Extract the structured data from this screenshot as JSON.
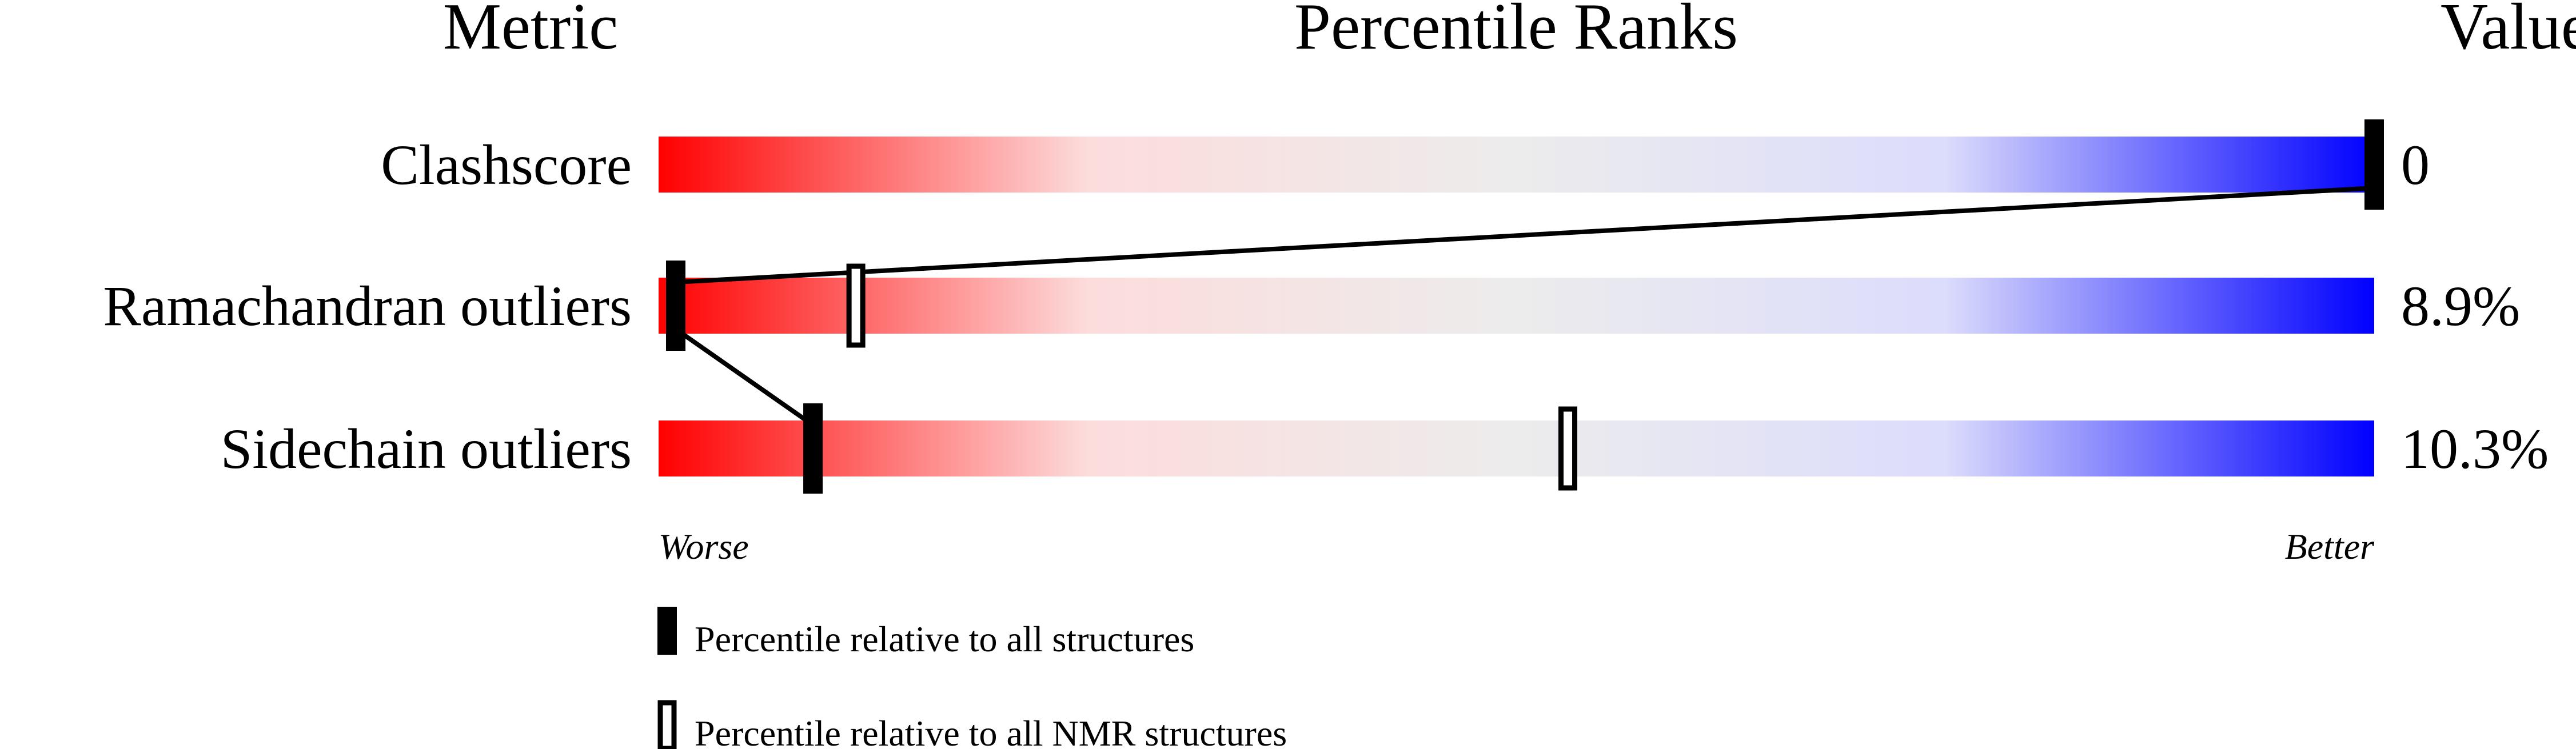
{
  "chart_data": {
    "type": "percentile-bar",
    "headers": {
      "metric": "Metric",
      "ranks": "Percentile Ranks",
      "value": "Value"
    },
    "xlim": [
      0,
      100
    ],
    "axis_labels": {
      "left": "Worse",
      "right": "Better"
    },
    "gradient_colors": [
      "#ff0000",
      "#fddcdc",
      "#ececec",
      "#dcdcfc",
      "#0000ff"
    ],
    "rows": [
      {
        "metric": "Clashscore",
        "value": "0",
        "percentile_all": 100,
        "percentile_nmr": null
      },
      {
        "metric": "Ramachandran outliers",
        "value": "8.9%",
        "percentile_all": 1,
        "percentile_nmr": 11.5
      },
      {
        "metric": "Sidechain outliers",
        "value": "10.3%",
        "percentile_all": 9,
        "percentile_nmr": 53
      }
    ],
    "legend": [
      {
        "label": "Percentile relative to all structures",
        "marker": "filled"
      },
      {
        "label": "Percentile relative to all NMR structures",
        "marker": "outline"
      }
    ]
  }
}
